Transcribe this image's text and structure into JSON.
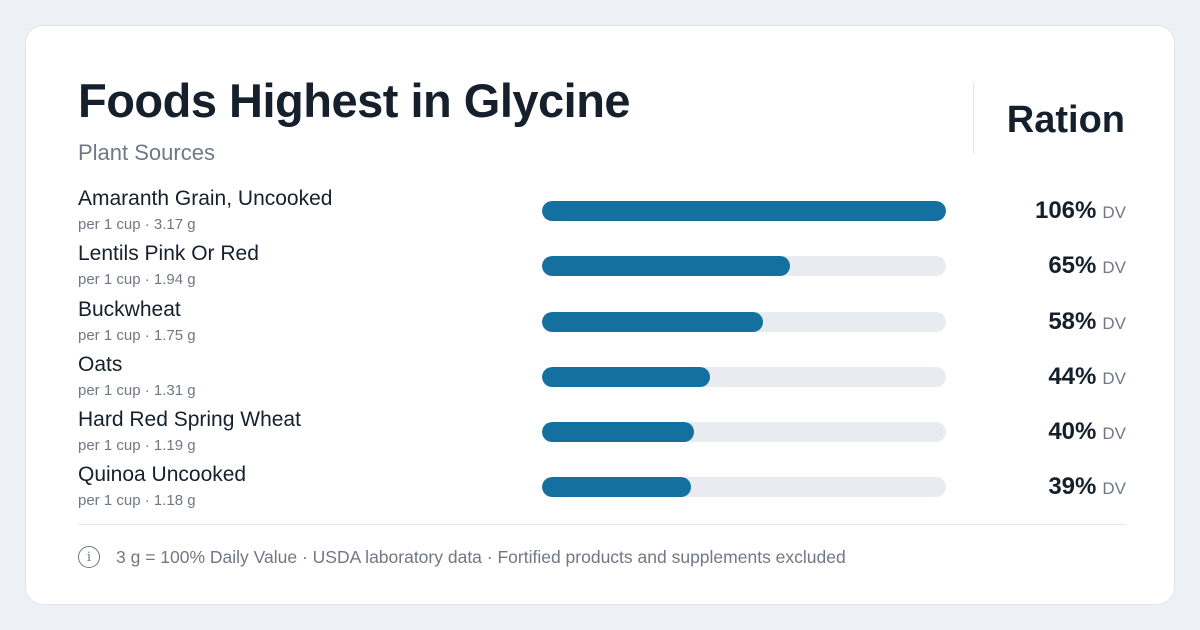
{
  "header": {
    "title": "Foods Highest in Glycine",
    "subtitle": "Plant Sources",
    "brand": "Ration"
  },
  "footer": {
    "note": "3 g = 100% Daily Value · USDA laboratory data · Fortified products and supplements excluded",
    "icon": "info-icon"
  },
  "colors": {
    "bar": "#14719f",
    "track": "#e8ecf0",
    "text": "#16202c",
    "muted": "#6f7884"
  },
  "chart_data": {
    "type": "bar",
    "orientation": "horizontal",
    "title": "Foods Highest in Glycine",
    "subtitle": "Plant Sources",
    "xlabel": "",
    "ylabel": "",
    "xlim": [
      0,
      106
    ],
    "unit": "DV",
    "categories": [
      "Amaranth Grain, Uncooked",
      "Lentils Pink Or Red",
      "Buckwheat",
      "Oats",
      "Hard Red Spring Wheat",
      "Quinoa Uncooked"
    ],
    "values": [
      106,
      65,
      58,
      44,
      40,
      39
    ],
    "rows": [
      {
        "name": "Amaranth Grain, Uncooked",
        "serving": "per 1 cup · 3.17 g",
        "pct": 106,
        "label": "106%",
        "unit": "DV"
      },
      {
        "name": "Lentils Pink Or Red",
        "serving": "per 1 cup · 1.94 g",
        "pct": 65,
        "label": "65%",
        "unit": "DV"
      },
      {
        "name": "Buckwheat",
        "serving": "per 1 cup · 1.75 g",
        "pct": 58,
        "label": "58%",
        "unit": "DV"
      },
      {
        "name": "Oats",
        "serving": "per 1 cup · 1.31 g",
        "pct": 44,
        "label": "44%",
        "unit": "DV"
      },
      {
        "name": "Hard Red Spring Wheat",
        "serving": "per 1 cup · 1.19 g",
        "pct": 40,
        "label": "40%",
        "unit": "DV"
      },
      {
        "name": "Quinoa Uncooked",
        "serving": "per 1 cup · 1.18 g",
        "pct": 39,
        "label": "39%",
        "unit": "DV"
      }
    ]
  }
}
